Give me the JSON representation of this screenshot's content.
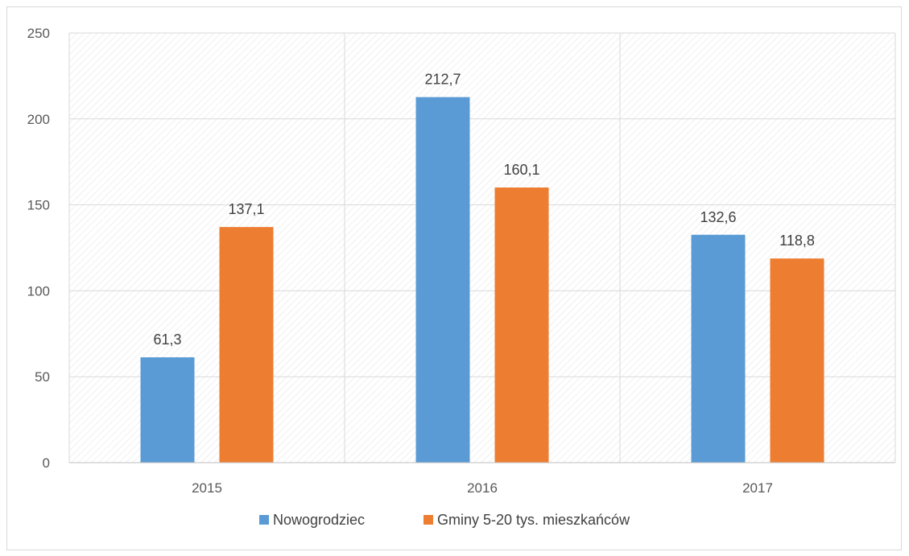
{
  "chart_data": {
    "type": "bar",
    "categories": [
      "2015",
      "2016",
      "2017"
    ],
    "series": [
      {
        "name": "Nowogrodziec",
        "values": [
          61.3,
          212.7,
          132.6
        ],
        "labels": [
          "61,3",
          "212,7",
          "132,6"
        ],
        "color": "#5b9bd5"
      },
      {
        "name": "Gminy 5-20 tys. mieszkańców",
        "values": [
          137.1,
          160.1,
          118.8
        ],
        "labels": [
          "137,1",
          "160,1",
          "118,8"
        ],
        "color": "#ed7d31"
      }
    ],
    "ylim": [
      0,
      250
    ],
    "yticks": [
      "0",
      "50",
      "100",
      "150",
      "200",
      "250"
    ],
    "ytick_values": [
      0,
      50,
      100,
      150,
      200,
      250
    ],
    "grid": true,
    "legend_position": "bottom"
  }
}
